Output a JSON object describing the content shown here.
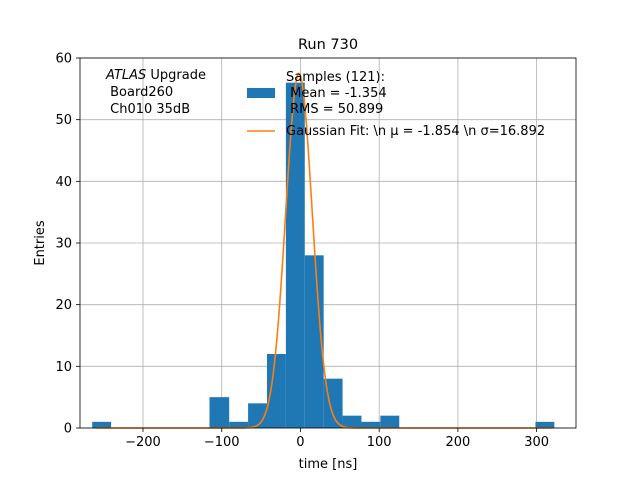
{
  "chart_data": {
    "type": "bar",
    "title": "Run 730",
    "xlabel": "time [ns]",
    "ylabel": "Entries",
    "xlim": [
      -280,
      350
    ],
    "ylim": [
      0,
      60
    ],
    "xticks": [
      -200,
      -100,
      0,
      100,
      200,
      300
    ],
    "yticks": [
      0,
      10,
      20,
      30,
      40,
      50,
      60
    ],
    "xtick_labels": [
      "−200",
      "−100",
      "0",
      "100",
      "200",
      "300"
    ],
    "ytick_labels": [
      "0",
      "10",
      "20",
      "30",
      "40",
      "50",
      "60"
    ],
    "grid": true,
    "annotation": {
      "italic": "ATLAS",
      "rest": " Upgrade",
      "line2": " Board260",
      "line3": " Ch010 35dB"
    },
    "legend": {
      "placement": "top-right",
      "hist_label_lines": [
        "Samples (121):",
        " Mean = -1.354",
        " RMS = 50.899"
      ],
      "fit_label": "Gaussian Fit: \\n μ = -1.854 \\n σ=16.892"
    },
    "series": [
      {
        "name": "Samples (121)",
        "kind": "histogram",
        "color": "#1f77b4",
        "bins": [
          {
            "x0": -264.5,
            "x1": -240.5,
            "count": 1
          },
          {
            "x0": -115.5,
            "x1": -90.5,
            "count": 5
          },
          {
            "x0": -90.5,
            "x1": -66.5,
            "count": 1
          },
          {
            "x0": -66.5,
            "x1": -42.5,
            "count": 4
          },
          {
            "x0": -42.5,
            "x1": -18.5,
            "count": 12
          },
          {
            "x0": -18.5,
            "x1": 5.5,
            "count": 56
          },
          {
            "x0": 5.5,
            "x1": 29.5,
            "count": 28
          },
          {
            "x0": 29.5,
            "x1": 53.5,
            "count": 8
          },
          {
            "x0": 53.5,
            "x1": 77.5,
            "count": 2
          },
          {
            "x0": 77.5,
            "x1": 101.5,
            "count": 1
          },
          {
            "x0": 101.5,
            "x1": 125.5,
            "count": 2
          },
          {
            "x0": 298.5,
            "x1": 322.5,
            "count": 1
          }
        ]
      },
      {
        "name": "Gaussian Fit",
        "kind": "gaussian",
        "color": "#ff7f0e",
        "mu": -1.854,
        "sigma": 16.892,
        "amplitude": 57.5,
        "x_range": [
          -260,
          320
        ]
      }
    ]
  }
}
